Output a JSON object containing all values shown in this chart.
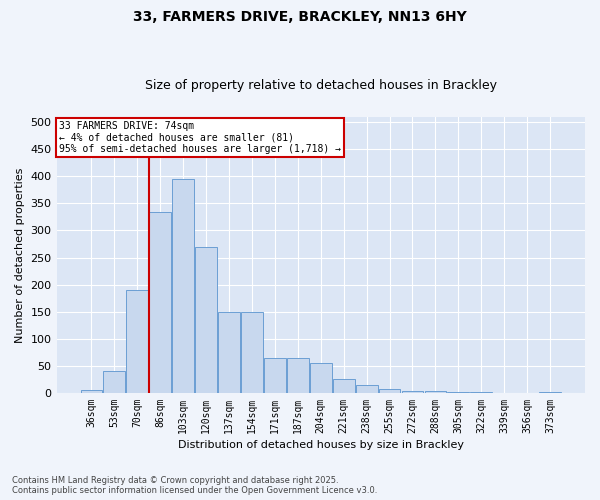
{
  "title1": "33, FARMERS DRIVE, BRACKLEY, NN13 6HY",
  "title2": "Size of property relative to detached houses in Brackley",
  "xlabel": "Distribution of detached houses by size in Brackley",
  "ylabel": "Number of detached properties",
  "annotation_title": "33 FARMERS DRIVE: 74sqm",
  "annotation_line1": "← 4% of detached houses are smaller (81)",
  "annotation_line2": "95% of semi-detached houses are larger (1,718) →",
  "vline_index": 2.5,
  "categories": [
    "36sqm",
    "53sqm",
    "70sqm",
    "86sqm",
    "103sqm",
    "120sqm",
    "137sqm",
    "154sqm",
    "171sqm",
    "187sqm",
    "204sqm",
    "221sqm",
    "238sqm",
    "255sqm",
    "272sqm",
    "288sqm",
    "305sqm",
    "322sqm",
    "339sqm",
    "356sqm",
    "373sqm"
  ],
  "bar_heights": [
    5,
    40,
    190,
    335,
    395,
    270,
    150,
    150,
    65,
    65,
    55,
    25,
    15,
    7,
    4,
    3,
    2,
    1,
    0,
    0,
    1
  ],
  "bar_color": "#c8d8ee",
  "bar_edge_color": "#6b9fd4",
  "vline_color": "#cc0000",
  "annotation_box_edge_color": "#cc0000",
  "background_color": "#dce6f5",
  "plot_bg_color": "#dce6f5",
  "fig_bg_color": "#f0f4fb",
  "grid_color": "#ffffff",
  "ylim": [
    0,
    510
  ],
  "yticks": [
    0,
    50,
    100,
    150,
    200,
    250,
    300,
    350,
    400,
    450,
    500
  ],
  "footer1": "Contains HM Land Registry data © Crown copyright and database right 2025.",
  "footer2": "Contains public sector information licensed under the Open Government Licence v3.0."
}
